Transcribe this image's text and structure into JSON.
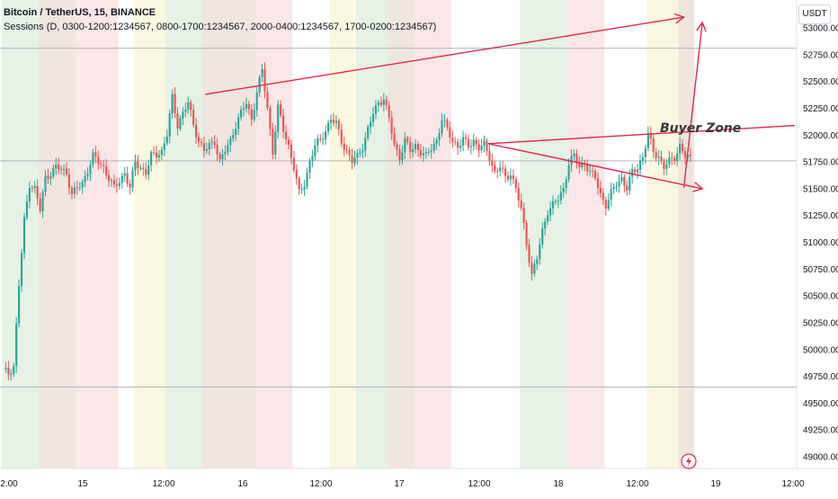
{
  "header": {
    "title": "Bitcoin / TetherUS, 15, BINANCE",
    "indicator": "Sessions (D, 0300-1200:1234567, 0800-1700:1234567, 2000-0400:1234567, 1700-0200:1234567)"
  },
  "axis": {
    "unit": "USDT",
    "y_labels": [
      "53000.00",
      "52750.00",
      "52500.00",
      "52250.00",
      "52000.00",
      "51750.00",
      "51500.00",
      "51250.00",
      "51000.00",
      "50750.00",
      "50500.00",
      "50250.00",
      "50000.00",
      "49750.00",
      "49500.00",
      "49250.00",
      "49000.00"
    ],
    "x_labels": [
      "2:00",
      "15",
      "12:00",
      "16",
      "12:00",
      "17",
      "12:00",
      "18",
      "12:00",
      "19",
      "12:00"
    ]
  },
  "annotations": {
    "buyer_zone": "Buyer Zone"
  },
  "colors": {
    "up": "#26a69a",
    "down": "#ef5350",
    "drawing": "#e5264a",
    "session_green": "#e3f1e2",
    "session_yellow": "#f9f7dc",
    "session_pink": "#fbe4e4",
    "session_brown": "#eee2dc"
  },
  "chart_data": {
    "type": "candlestick",
    "symbol": "BTCUSDT",
    "interval": "15",
    "exchange": "BINANCE",
    "ylim": [
      48950,
      53150
    ],
    "y_ticks": [
      53000,
      52750,
      52500,
      52250,
      52000,
      51750,
      51500,
      51250,
      51000,
      50750,
      50500,
      50250,
      50000,
      49750,
      49500,
      49250,
      49000
    ],
    "price_path": [
      [
        0,
        49800
      ],
      [
        2,
        49780
      ],
      [
        4,
        49850
      ],
      [
        6,
        50600
      ],
      [
        8,
        51200
      ],
      [
        10,
        51550
      ],
      [
        12,
        51500
      ],
      [
        14,
        51300
      ],
      [
        16,
        51600
      ],
      [
        20,
        51700
      ],
      [
        24,
        51650
      ],
      [
        26,
        51450
      ],
      [
        30,
        51550
      ],
      [
        34,
        51800
      ],
      [
        38,
        51700
      ],
      [
        40,
        51600
      ],
      [
        42,
        51500
      ],
      [
        46,
        51650
      ],
      [
        48,
        51500
      ],
      [
        50,
        51750
      ],
      [
        54,
        51650
      ],
      [
        56,
        51800
      ],
      [
        60,
        51850
      ],
      [
        62,
        52000
      ],
      [
        64,
        52350
      ],
      [
        66,
        52100
      ],
      [
        68,
        52200
      ],
      [
        70,
        52300
      ],
      [
        72,
        52100
      ],
      [
        74,
        51950
      ],
      [
        76,
        51850
      ],
      [
        80,
        51950
      ],
      [
        82,
        51750
      ],
      [
        84,
        51850
      ],
      [
        86,
        51950
      ],
      [
        88,
        52100
      ],
      [
        90,
        52200
      ],
      [
        92,
        52300
      ],
      [
        94,
        52150
      ],
      [
        96,
        52400
      ],
      [
        98,
        52600
      ],
      [
        100,
        52250
      ],
      [
        102,
        51850
      ],
      [
        104,
        52250
      ],
      [
        106,
        52050
      ],
      [
        108,
        51900
      ],
      [
        110,
        51700
      ],
      [
        112,
        51450
      ],
      [
        114,
        51550
      ],
      [
        116,
        51750
      ],
      [
        118,
        51900
      ],
      [
        120,
        51950
      ],
      [
        122,
        52050
      ],
      [
        124,
        52150
      ],
      [
        126,
        52100
      ],
      [
        128,
        51950
      ],
      [
        130,
        51850
      ],
      [
        132,
        51750
      ],
      [
        134,
        51800
      ],
      [
        136,
        51900
      ],
      [
        138,
        52050
      ],
      [
        140,
        52200
      ],
      [
        142,
        52300
      ],
      [
        144,
        52350
      ],
      [
        146,
        52150
      ],
      [
        148,
        51900
      ],
      [
        150,
        51800
      ],
      [
        152,
        51950
      ],
      [
        154,
        51850
      ],
      [
        156,
        51900
      ],
      [
        158,
        51850
      ],
      [
        160,
        51800
      ],
      [
        164,
        51950
      ],
      [
        166,
        52150
      ],
      [
        168,
        52050
      ],
      [
        170,
        51950
      ],
      [
        172,
        51900
      ],
      [
        174,
        51950
      ],
      [
        176,
        51900
      ],
      [
        178,
        51950
      ],
      [
        180,
        51880
      ],
      [
        182,
        51900
      ],
      [
        184,
        51800
      ],
      [
        186,
        51650
      ],
      [
        188,
        51700
      ],
      [
        190,
        51600
      ],
      [
        192,
        51650
      ],
      [
        194,
        51500
      ],
      [
        196,
        51300
      ],
      [
        198,
        51000
      ],
      [
        200,
        50700
      ],
      [
        202,
        50850
      ],
      [
        204,
        51100
      ],
      [
        206,
        51300
      ],
      [
        208,
        51350
      ],
      [
        210,
        51400
      ],
      [
        212,
        51500
      ],
      [
        214,
        51750
      ],
      [
        216,
        51800
      ],
      [
        218,
        51700
      ],
      [
        220,
        51750
      ],
      [
        222,
        51650
      ],
      [
        224,
        51600
      ],
      [
        226,
        51450
      ],
      [
        228,
        51350
      ],
      [
        230,
        51450
      ],
      [
        232,
        51550
      ],
      [
        234,
        51600
      ],
      [
        236,
        51500
      ],
      [
        238,
        51650
      ],
      [
        240,
        51700
      ],
      [
        242,
        51800
      ],
      [
        244,
        52000
      ],
      [
        246,
        51850
      ],
      [
        248,
        51800
      ],
      [
        250,
        51700
      ],
      [
        252,
        51750
      ],
      [
        254,
        51800
      ],
      [
        256,
        51900
      ],
      [
        258,
        51800
      ],
      [
        260,
        51780
      ]
    ],
    "trend_lines": [
      {
        "from": [
          77,
          52380
        ],
        "to": [
          258,
          53100
        ],
        "arrow": true
      },
      {
        "from": [
          184,
          51920
        ],
        "to": [
          265,
          51500
        ],
        "arrow": true
      },
      {
        "from": [
          184,
          51920
        ],
        "to": [
          300,
          52090
        ],
        "arrow": false
      },
      {
        "from": [
          258,
          51510
        ],
        "to": [
          265,
          53050
        ],
        "arrow": true
      }
    ],
    "horizontal_lines": [
      52810,
      51760,
      49650
    ],
    "session_bands": [
      {
        "from": 0,
        "to": 14,
        "color": "green"
      },
      {
        "from": 14,
        "to": 28,
        "color": "brown"
      },
      {
        "from": 28,
        "to": 44,
        "color": "pink"
      },
      {
        "from": 44,
        "to": 50,
        "color": "none"
      },
      {
        "from": 50,
        "to": 62,
        "color": "yellow"
      },
      {
        "from": 62,
        "to": 76,
        "color": "green"
      },
      {
        "from": 76,
        "to": 96,
        "color": "brown"
      },
      {
        "from": 96,
        "to": 110,
        "color": "pink"
      },
      {
        "from": 110,
        "to": 124,
        "color": "none"
      },
      {
        "from": 124,
        "to": 134,
        "color": "yellow"
      },
      {
        "from": 134,
        "to": 146,
        "color": "green"
      },
      {
        "from": 146,
        "to": 156,
        "color": "brown"
      },
      {
        "from": 156,
        "to": 170,
        "color": "pink"
      },
      {
        "from": 170,
        "to": 196,
        "color": "none"
      },
      {
        "from": 196,
        "to": 214,
        "color": "green"
      },
      {
        "from": 214,
        "to": 228,
        "color": "pink"
      },
      {
        "from": 228,
        "to": 244,
        "color": "none"
      },
      {
        "from": 244,
        "to": 256,
        "color": "yellow"
      },
      {
        "from": 256,
        "to": 262,
        "color": "brown"
      }
    ]
  }
}
